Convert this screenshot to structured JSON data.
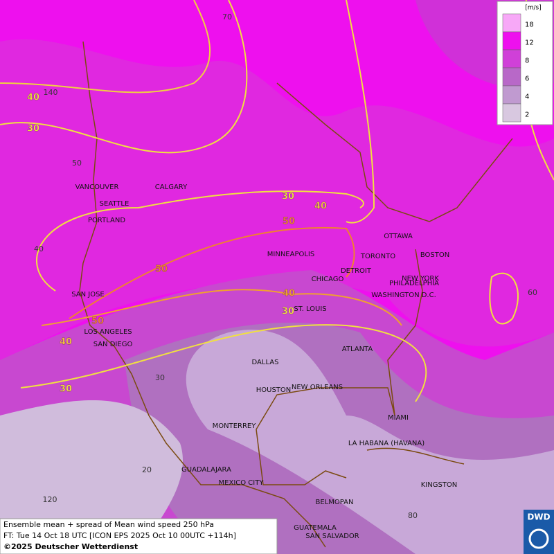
{
  "legend": {
    "unit": "[m/s]",
    "levels": [
      {
        "value": 18,
        "color": "#f7a8f7"
      },
      {
        "value": 12,
        "color": "#ee10ee"
      },
      {
        "value": 8,
        "color": "#d040d8"
      },
      {
        "value": 6,
        "color": "#b868c8"
      },
      {
        "value": 4,
        "color": "#c09ad0"
      },
      {
        "value": 2,
        "color": "#d8c8e0"
      }
    ]
  },
  "cities": [
    "VANCOUVER",
    "CALGARY",
    "SEATTLE",
    "PORTLAND",
    "MINNEAPOLIS",
    "TORONTO",
    "OTTAWA",
    "BOSTON",
    "NEW YORK",
    "PHILADELPHIA",
    "DETROIT",
    "CHICAGO",
    "WASHINGTON D.C.",
    "SAN JOSE",
    "ST. LOUIS",
    "LOS ANGELES",
    "SAN DIEGO",
    "ATLANTA",
    "DALLAS",
    "HOUSTON",
    "NEW ORLEANS",
    "MIAMI",
    "MONTERREY",
    "LA HABANA (HAVANA)",
    "GUADALAJARA",
    "MEXICO CITY",
    "KINGSTON",
    "BELMOPAN",
    "GUATEMALA",
    "SAN SALVADOR"
  ],
  "contour_labels": [
    40,
    30,
    30,
    40,
    50,
    50,
    40,
    30,
    50,
    40,
    30
  ],
  "graticule_labels": [
    70,
    140,
    50,
    40,
    60,
    30,
    20,
    120,
    80
  ],
  "caption": [
    "Ensemble mean + spread of Mean wind speed 250 hPa",
    "FT: Tue 14 Oct 18 UTC [ICON EPS 2025 Oct 10 00UTC +114h]",
    "©2025 Deutscher Wetterdienst"
  ],
  "logo": "DWD"
}
